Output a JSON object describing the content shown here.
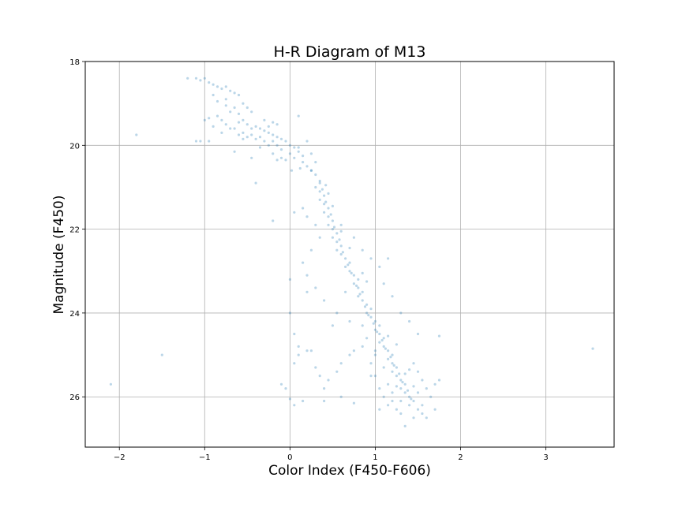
{
  "chart_data": {
    "type": "scatter",
    "title": "H-R Diagram of M13",
    "xlabel": "Color Index (F450-F606)",
    "ylabel": "Magnitude (F450)",
    "xlim": [
      -2.4,
      3.8
    ],
    "ylim": [
      27.2,
      18.0
    ],
    "y_inverted": true,
    "x_ticks": [
      -2,
      -1,
      0,
      1,
      2,
      3
    ],
    "x_tick_labels": [
      "−2",
      "−1",
      "0",
      "1",
      "2",
      "3"
    ],
    "y_ticks": [
      18,
      20,
      22,
      24,
      26
    ],
    "y_tick_labels": [
      "18",
      "20",
      "22",
      "24",
      "26"
    ],
    "grid": true,
    "marker_color": "#1f77b4",
    "marker_alpha": 0.3,
    "series": [
      {
        "name": "",
        "points": [
          [
            -1.2,
            18.4
          ],
          [
            -1.1,
            18.4
          ],
          [
            -1.05,
            18.45
          ],
          [
            -1.0,
            18.4
          ],
          [
            -0.95,
            18.5
          ],
          [
            -0.9,
            18.55
          ],
          [
            -0.85,
            18.6
          ],
          [
            -0.8,
            18.65
          ],
          [
            -0.75,
            18.6
          ],
          [
            -0.7,
            18.7
          ],
          [
            -0.65,
            18.75
          ],
          [
            -0.6,
            18.8
          ],
          [
            -0.9,
            18.8
          ],
          [
            -0.85,
            18.95
          ],
          [
            -0.75,
            18.9
          ],
          [
            -0.55,
            19.0
          ],
          [
            -0.5,
            19.1
          ],
          [
            -0.45,
            19.2
          ],
          [
            -0.6,
            19.25
          ],
          [
            -0.55,
            19.4
          ],
          [
            -0.5,
            19.5
          ],
          [
            -0.45,
            19.6
          ],
          [
            -0.4,
            19.55
          ],
          [
            -0.35,
            19.6
          ],
          [
            -0.3,
            19.65
          ],
          [
            -0.25,
            19.7
          ],
          [
            -0.2,
            19.75
          ],
          [
            -0.15,
            19.8
          ],
          [
            -0.1,
            19.85
          ],
          [
            -0.05,
            19.9
          ],
          [
            0.0,
            20.0
          ],
          [
            0.05,
            20.05
          ],
          [
            -0.1,
            20.1
          ],
          [
            -0.15,
            20.0
          ],
          [
            -0.2,
            19.9
          ],
          [
            -0.25,
            20.0
          ],
          [
            -0.3,
            19.9
          ],
          [
            -0.35,
            19.8
          ],
          [
            -0.4,
            19.85
          ],
          [
            -0.45,
            19.75
          ],
          [
            -0.5,
            19.8
          ],
          [
            -0.55,
            19.7
          ],
          [
            -0.6,
            19.75
          ],
          [
            -0.65,
            19.6
          ],
          [
            -0.7,
            19.6
          ],
          [
            -0.75,
            19.5
          ],
          [
            -0.8,
            19.4
          ],
          [
            -0.85,
            19.3
          ],
          [
            -0.95,
            19.35
          ],
          [
            -1.0,
            19.4
          ],
          [
            -1.05,
            19.9
          ],
          [
            -0.95,
            19.9
          ],
          [
            -1.1,
            19.9
          ],
          [
            -0.7,
            19.2
          ],
          [
            -0.65,
            19.1
          ],
          [
            -0.2,
            19.45
          ],
          [
            -0.15,
            19.5
          ],
          [
            -0.1,
            20.3
          ],
          [
            -0.05,
            20.35
          ],
          [
            0.0,
            20.2
          ],
          [
            0.05,
            20.3
          ],
          [
            0.1,
            20.15
          ],
          [
            0.15,
            20.4
          ],
          [
            0.2,
            20.5
          ],
          [
            0.25,
            20.6
          ],
          [
            0.3,
            20.7
          ],
          [
            0.35,
            20.9
          ],
          [
            0.3,
            21.0
          ],
          [
            0.35,
            21.1
          ],
          [
            0.4,
            21.2
          ],
          [
            0.35,
            21.3
          ],
          [
            0.4,
            21.4
          ],
          [
            0.45,
            21.5
          ],
          [
            0.4,
            21.6
          ],
          [
            0.45,
            21.7
          ],
          [
            0.5,
            21.8
          ],
          [
            0.45,
            21.9
          ],
          [
            0.5,
            22.0
          ],
          [
            0.55,
            22.1
          ],
          [
            0.5,
            22.2
          ],
          [
            0.55,
            22.3
          ],
          [
            0.6,
            22.4
          ],
          [
            0.55,
            22.5
          ],
          [
            0.6,
            22.6
          ],
          [
            0.65,
            22.7
          ],
          [
            0.7,
            22.8
          ],
          [
            0.65,
            22.9
          ],
          [
            0.7,
            23.0
          ],
          [
            0.75,
            23.1
          ],
          [
            0.8,
            23.2
          ],
          [
            0.75,
            23.3
          ],
          [
            0.8,
            23.4
          ],
          [
            0.85,
            23.5
          ],
          [
            0.8,
            23.6
          ],
          [
            0.85,
            23.7
          ],
          [
            0.9,
            23.8
          ],
          [
            0.95,
            23.9
          ],
          [
            0.9,
            24.0
          ],
          [
            0.95,
            24.1
          ],
          [
            1.0,
            24.2
          ],
          [
            1.05,
            24.3
          ],
          [
            1.0,
            24.4
          ],
          [
            1.05,
            24.5
          ],
          [
            1.1,
            24.6
          ],
          [
            1.05,
            24.7
          ],
          [
            1.1,
            24.8
          ],
          [
            1.15,
            24.9
          ],
          [
            1.2,
            25.0
          ],
          [
            1.15,
            25.1
          ],
          [
            1.2,
            25.2
          ],
          [
            1.25,
            25.3
          ],
          [
            1.2,
            25.4
          ],
          [
            1.25,
            25.5
          ],
          [
            1.3,
            25.6
          ],
          [
            1.35,
            25.7
          ],
          [
            1.3,
            25.8
          ],
          [
            1.35,
            25.9
          ],
          [
            1.4,
            26.0
          ],
          [
            1.45,
            26.1
          ],
          [
            1.4,
            26.2
          ],
          [
            1.5,
            26.3
          ],
          [
            1.55,
            26.4
          ],
          [
            1.6,
            26.5
          ],
          [
            1.7,
            26.3
          ],
          [
            1.35,
            26.7
          ],
          [
            1.45,
            25.2
          ],
          [
            1.5,
            25.4
          ],
          [
            1.55,
            25.6
          ],
          [
            1.6,
            25.8
          ],
          [
            1.5,
            25.9
          ],
          [
            1.0,
            25.0
          ],
          [
            0.95,
            25.2
          ],
          [
            1.0,
            25.5
          ],
          [
            1.05,
            25.8
          ],
          [
            1.1,
            26.0
          ],
          [
            1.15,
            26.2
          ],
          [
            1.25,
            26.3
          ],
          [
            1.3,
            26.1
          ],
          [
            1.2,
            25.9
          ],
          [
            1.15,
            25.7
          ],
          [
            0.9,
            24.6
          ],
          [
            0.85,
            24.8
          ],
          [
            0.75,
            24.9
          ],
          [
            0.7,
            25.0
          ],
          [
            0.6,
            25.2
          ],
          [
            0.55,
            25.4
          ],
          [
            0.45,
            25.6
          ],
          [
            0.4,
            25.8
          ],
          [
            0.35,
            25.5
          ],
          [
            0.3,
            25.3
          ],
          [
            0.2,
            24.9
          ],
          [
            0.1,
            24.8
          ],
          [
            0.05,
            24.5
          ],
          [
            0.05,
            25.2
          ],
          [
            -0.1,
            25.7
          ],
          [
            -0.05,
            25.8
          ],
          [
            0.0,
            26.05
          ],
          [
            0.05,
            26.2
          ],
          [
            0.15,
            26.1
          ],
          [
            0.4,
            26.1
          ],
          [
            0.6,
            26.0
          ],
          [
            0.75,
            26.15
          ],
          [
            0.5,
            24.3
          ],
          [
            0.4,
            23.7
          ],
          [
            0.3,
            23.4
          ],
          [
            0.2,
            23.1
          ],
          [
            0.15,
            22.8
          ],
          [
            0.25,
            22.5
          ],
          [
            0.35,
            22.2
          ],
          [
            0.3,
            21.9
          ],
          [
            0.2,
            21.7
          ],
          [
            0.15,
            21.5
          ],
          [
            0.05,
            21.6
          ],
          [
            0.6,
            21.9
          ],
          [
            0.75,
            22.2
          ],
          [
            0.85,
            22.5
          ],
          [
            0.95,
            22.7
          ],
          [
            1.05,
            22.9
          ],
          [
            1.15,
            22.7
          ],
          [
            1.1,
            23.3
          ],
          [
            1.2,
            23.6
          ],
          [
            1.3,
            24.0
          ],
          [
            1.4,
            24.2
          ],
          [
            1.5,
            24.5
          ],
          [
            1.75,
            24.55
          ],
          [
            0.0,
            23.2
          ],
          [
            0.2,
            23.5
          ],
          [
            0.25,
            20.6
          ],
          [
            0.3,
            20.4
          ],
          [
            0.25,
            20.2
          ],
          [
            0.2,
            19.9
          ],
          [
            0.1,
            19.3
          ],
          [
            -0.4,
            20.9
          ],
          [
            -0.2,
            21.8
          ],
          [
            0.0,
            24.0
          ],
          [
            -1.8,
            19.75
          ],
          [
            -1.5,
            25.0
          ],
          [
            -2.1,
            25.7
          ],
          [
            3.55,
            24.85
          ],
          [
            0.1,
            25.0
          ],
          [
            0.25,
            24.9
          ],
          [
            0.55,
            24.0
          ],
          [
            0.65,
            23.5
          ],
          [
            0.7,
            24.2
          ],
          [
            0.85,
            24.3
          ],
          [
            0.95,
            25.5
          ],
          [
            1.05,
            26.3
          ],
          [
            1.45,
            26.5
          ],
          [
            1.55,
            26.2
          ],
          [
            1.65,
            26.0
          ],
          [
            1.7,
            25.7
          ],
          [
            1.75,
            25.6
          ],
          [
            0.38,
            21.05
          ],
          [
            0.42,
            21.35
          ],
          [
            0.48,
            21.65
          ],
          [
            0.52,
            21.95
          ],
          [
            0.58,
            22.25
          ],
          [
            0.62,
            22.55
          ],
          [
            0.68,
            22.85
          ],
          [
            0.72,
            23.05
          ],
          [
            0.78,
            23.35
          ],
          [
            0.82,
            23.55
          ],
          [
            0.88,
            23.85
          ],
          [
            0.92,
            24.05
          ],
          [
            0.98,
            24.25
          ],
          [
            1.02,
            24.45
          ],
          [
            1.08,
            24.65
          ],
          [
            1.12,
            24.85
          ],
          [
            1.18,
            25.05
          ],
          [
            1.22,
            25.25
          ],
          [
            1.28,
            25.45
          ],
          [
            1.32,
            25.65
          ],
          [
            1.38,
            25.85
          ],
          [
            1.42,
            26.05
          ],
          [
            -0.3,
            19.4
          ],
          [
            -0.25,
            19.55
          ],
          [
            -0.55,
            19.85
          ],
          [
            -0.65,
            20.15
          ],
          [
            -0.45,
            20.3
          ],
          [
            -0.35,
            20.05
          ],
          [
            -0.2,
            20.2
          ],
          [
            -0.15,
            20.35
          ],
          [
            0.1,
            20.05
          ],
          [
            0.15,
            20.25
          ],
          [
            -0.8,
            19.7
          ],
          [
            -0.9,
            19.55
          ],
          [
            -0.75,
            19.05
          ],
          [
            -0.6,
            19.45
          ],
          [
            0.02,
            20.6
          ],
          [
            0.12,
            20.55
          ],
          [
            1.0,
            24.9
          ],
          [
            1.1,
            25.3
          ],
          [
            1.25,
            25.75
          ],
          [
            1.35,
            25.45
          ],
          [
            1.45,
            25.75
          ],
          [
            1.3,
            26.4
          ],
          [
            1.2,
            26.1
          ],
          [
            1.4,
            25.35
          ],
          [
            1.15,
            24.55
          ],
          [
            1.25,
            24.75
          ],
          [
            0.9,
            23.25
          ],
          [
            0.85,
            23.05
          ],
          [
            0.7,
            22.45
          ],
          [
            0.6,
            22.05
          ],
          [
            0.5,
            21.45
          ],
          [
            0.45,
            21.15
          ],
          [
            0.42,
            20.95
          ],
          [
            0.35,
            20.85
          ]
        ]
      }
    ]
  }
}
